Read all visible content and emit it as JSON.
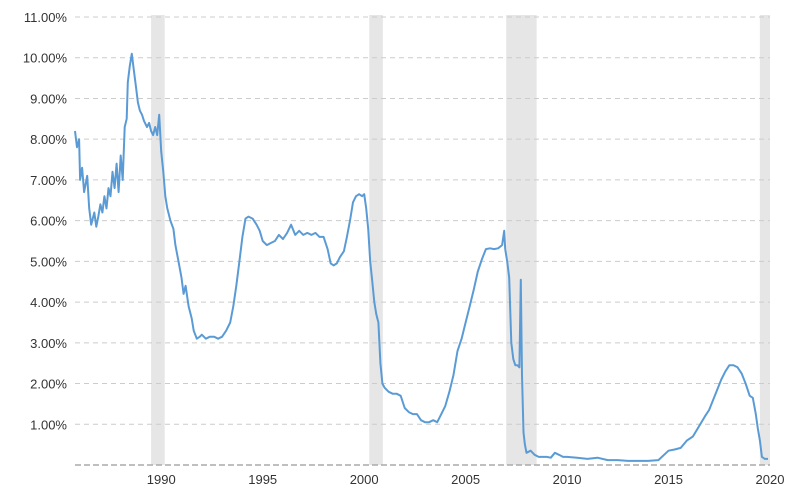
{
  "chart_data": {
    "type": "line",
    "title": "",
    "xlabel": "",
    "ylabel": "",
    "x_range": [
      1985.75,
      2020.0
    ],
    "y_range": [
      0,
      11
    ],
    "y_ticks": [
      {
        "value": 1,
        "label": "1.00%"
      },
      {
        "value": 2,
        "label": "2.00%"
      },
      {
        "value": 3,
        "label": "3.00%"
      },
      {
        "value": 4,
        "label": "4.00%"
      },
      {
        "value": 5,
        "label": "5.00%"
      },
      {
        "value": 6,
        "label": "6.00%"
      },
      {
        "value": 7,
        "label": "7.00%"
      },
      {
        "value": 8,
        "label": "8.00%"
      },
      {
        "value": 9,
        "label": "9.00%"
      },
      {
        "value": 10,
        "label": "10.00%"
      },
      {
        "value": 11,
        "label": "11.00%"
      }
    ],
    "x_ticks": [
      {
        "value": 1990,
        "label": "1990"
      },
      {
        "value": 1995,
        "label": "1995"
      },
      {
        "value": 2000,
        "label": "2000"
      },
      {
        "value": 2005,
        "label": "2005"
      },
      {
        "value": 2010,
        "label": "2010"
      },
      {
        "value": 2015,
        "label": "2015"
      },
      {
        "value": 2020,
        "label": "2020"
      }
    ],
    "grid": "horizontal dashed",
    "legend": "none",
    "recession_bands": [
      {
        "start": 1989.5,
        "end": 1990.17
      },
      {
        "start": 2000.25,
        "end": 2000.92
      },
      {
        "start": 2007.0,
        "end": 2008.5
      },
      {
        "start": 2019.5,
        "end": 2020.0
      }
    ],
    "colors": {
      "line": "#5b9bd5",
      "recession": "#e6e6e6",
      "grid": "#cccccc",
      "baseline": "#aaaaaa"
    },
    "series": [
      {
        "points": [
          [
            1985.75,
            8.2
          ],
          [
            1985.85,
            7.8
          ],
          [
            1985.95,
            8.0
          ],
          [
            1986.0,
            7.0
          ],
          [
            1986.1,
            7.3
          ],
          [
            1986.2,
            6.7
          ],
          [
            1986.35,
            7.1
          ],
          [
            1986.45,
            6.3
          ],
          [
            1986.55,
            5.9
          ],
          [
            1986.7,
            6.2
          ],
          [
            1986.8,
            5.85
          ],
          [
            1986.9,
            6.1
          ],
          [
            1987.0,
            6.4
          ],
          [
            1987.1,
            6.2
          ],
          [
            1987.2,
            6.6
          ],
          [
            1987.3,
            6.3
          ],
          [
            1987.4,
            6.8
          ],
          [
            1987.5,
            6.6
          ],
          [
            1987.6,
            7.2
          ],
          [
            1987.7,
            6.8
          ],
          [
            1987.8,
            7.4
          ],
          [
            1987.9,
            6.7
          ],
          [
            1988.0,
            7.6
          ],
          [
            1988.1,
            7.0
          ],
          [
            1988.2,
            8.3
          ],
          [
            1988.3,
            8.5
          ],
          [
            1988.35,
            9.4
          ],
          [
            1988.45,
            9.8
          ],
          [
            1988.55,
            10.1
          ],
          [
            1988.65,
            9.7
          ],
          [
            1988.75,
            9.3
          ],
          [
            1988.85,
            8.9
          ],
          [
            1988.95,
            8.7
          ],
          [
            1989.05,
            8.6
          ],
          [
            1989.15,
            8.45
          ],
          [
            1989.3,
            8.3
          ],
          [
            1989.4,
            8.4
          ],
          [
            1989.5,
            8.2
          ],
          [
            1989.6,
            8.1
          ],
          [
            1989.7,
            8.3
          ],
          [
            1989.8,
            8.1
          ],
          [
            1989.9,
            8.6
          ],
          [
            1990.0,
            7.7
          ],
          [
            1990.1,
            7.2
          ],
          [
            1990.2,
            6.6
          ],
          [
            1990.3,
            6.3
          ],
          [
            1990.45,
            6.0
          ],
          [
            1990.6,
            5.8
          ],
          [
            1990.7,
            5.4
          ],
          [
            1990.85,
            5.0
          ],
          [
            1991.0,
            4.6
          ],
          [
            1991.1,
            4.2
          ],
          [
            1991.2,
            4.4
          ],
          [
            1991.35,
            3.9
          ],
          [
            1991.5,
            3.6
          ],
          [
            1991.6,
            3.3
          ],
          [
            1991.75,
            3.1
          ],
          [
            1991.9,
            3.15
          ],
          [
            1992.0,
            3.2
          ],
          [
            1992.2,
            3.1
          ],
          [
            1992.4,
            3.15
          ],
          [
            1992.6,
            3.15
          ],
          [
            1992.8,
            3.1
          ],
          [
            1993.0,
            3.15
          ],
          [
            1993.2,
            3.3
          ],
          [
            1993.4,
            3.5
          ],
          [
            1993.55,
            3.9
          ],
          [
            1993.7,
            4.4
          ],
          [
            1993.85,
            5.0
          ],
          [
            1994.0,
            5.6
          ],
          [
            1994.15,
            6.05
          ],
          [
            1994.3,
            6.1
          ],
          [
            1994.5,
            6.05
          ],
          [
            1994.7,
            5.9
          ],
          [
            1994.85,
            5.75
          ],
          [
            1995.0,
            5.5
          ],
          [
            1995.2,
            5.4
          ],
          [
            1995.4,
            5.45
          ],
          [
            1995.6,
            5.5
          ],
          [
            1995.8,
            5.65
          ],
          [
            1996.0,
            5.55
          ],
          [
            1996.2,
            5.7
          ],
          [
            1996.4,
            5.9
          ],
          [
            1996.6,
            5.65
          ],
          [
            1996.8,
            5.75
          ],
          [
            1997.0,
            5.65
          ],
          [
            1997.2,
            5.7
          ],
          [
            1997.4,
            5.65
          ],
          [
            1997.6,
            5.7
          ],
          [
            1997.8,
            5.6
          ],
          [
            1998.0,
            5.6
          ],
          [
            1998.2,
            5.3
          ],
          [
            1998.35,
            4.95
          ],
          [
            1998.5,
            4.9
          ],
          [
            1998.65,
            4.95
          ],
          [
            1998.8,
            5.1
          ],
          [
            1999.0,
            5.25
          ],
          [
            1999.15,
            5.6
          ],
          [
            1999.3,
            6.0
          ],
          [
            1999.45,
            6.45
          ],
          [
            1999.6,
            6.6
          ],
          [
            1999.75,
            6.65
          ],
          [
            1999.9,
            6.6
          ],
          [
            2000.0,
            6.65
          ],
          [
            2000.1,
            6.3
          ],
          [
            2000.2,
            5.8
          ],
          [
            2000.3,
            5.0
          ],
          [
            2000.4,
            4.5
          ],
          [
            2000.5,
            4.0
          ],
          [
            2000.6,
            3.7
          ],
          [
            2000.7,
            3.5
          ],
          [
            2000.8,
            2.5
          ],
          [
            2000.9,
            2.0
          ],
          [
            2001.0,
            1.9
          ],
          [
            2001.2,
            1.8
          ],
          [
            2001.4,
            1.75
          ],
          [
            2001.6,
            1.75
          ],
          [
            2001.8,
            1.7
          ],
          [
            2002.0,
            1.4
          ],
          [
            2002.2,
            1.3
          ],
          [
            2002.4,
            1.25
          ],
          [
            2002.6,
            1.25
          ],
          [
            2002.8,
            1.1
          ],
          [
            2003.0,
            1.05
          ],
          [
            2003.2,
            1.05
          ],
          [
            2003.4,
            1.1
          ],
          [
            2003.6,
            1.05
          ],
          [
            2003.8,
            1.25
          ],
          [
            2004.0,
            1.45
          ],
          [
            2004.2,
            1.8
          ],
          [
            2004.4,
            2.2
          ],
          [
            2004.6,
            2.8
          ],
          [
            2004.8,
            3.1
          ],
          [
            2005.0,
            3.5
          ],
          [
            2005.2,
            3.9
          ],
          [
            2005.4,
            4.3
          ],
          [
            2005.6,
            4.75
          ],
          [
            2005.8,
            5.05
          ],
          [
            2006.0,
            5.3
          ],
          [
            2006.2,
            5.32
          ],
          [
            2006.4,
            5.3
          ],
          [
            2006.6,
            5.32
          ],
          [
            2006.8,
            5.4
          ],
          [
            2006.9,
            5.75
          ],
          [
            2006.95,
            5.3
          ],
          [
            2007.05,
            5.0
          ],
          [
            2007.15,
            4.6
          ],
          [
            2007.25,
            3.0
          ],
          [
            2007.35,
            2.6
          ],
          [
            2007.45,
            2.45
          ],
          [
            2007.55,
            2.45
          ],
          [
            2007.65,
            2.4
          ],
          [
            2007.72,
            4.55
          ],
          [
            2007.78,
            2.2
          ],
          [
            2007.85,
            0.8
          ],
          [
            2007.92,
            0.5
          ],
          [
            2008.0,
            0.3
          ],
          [
            2008.2,
            0.35
          ],
          [
            2008.4,
            0.25
          ],
          [
            2008.6,
            0.2
          ],
          [
            2008.8,
            0.2
          ],
          [
            2009.0,
            0.2
          ],
          [
            2009.2,
            0.18
          ],
          [
            2009.4,
            0.3
          ],
          [
            2009.6,
            0.25
          ],
          [
            2009.8,
            0.2
          ],
          [
            2010.0,
            0.2
          ],
          [
            2010.5,
            0.18
          ],
          [
            2011.0,
            0.15
          ],
          [
            2011.5,
            0.18
          ],
          [
            2012.0,
            0.12
          ],
          [
            2012.5,
            0.12
          ],
          [
            2013.0,
            0.1
          ],
          [
            2013.5,
            0.1
          ],
          [
            2014.0,
            0.1
          ],
          [
            2014.5,
            0.12
          ],
          [
            2015.0,
            0.35
          ],
          [
            2015.3,
            0.38
          ],
          [
            2015.6,
            0.42
          ],
          [
            2015.9,
            0.6
          ],
          [
            2016.2,
            0.7
          ],
          [
            2016.5,
            0.95
          ],
          [
            2016.8,
            1.2
          ],
          [
            2017.0,
            1.35
          ],
          [
            2017.2,
            1.6
          ],
          [
            2017.4,
            1.85
          ],
          [
            2017.6,
            2.1
          ],
          [
            2017.8,
            2.3
          ],
          [
            2018.0,
            2.45
          ],
          [
            2018.2,
            2.45
          ],
          [
            2018.4,
            2.4
          ],
          [
            2018.6,
            2.25
          ],
          [
            2018.8,
            2.0
          ],
          [
            2019.0,
            1.7
          ],
          [
            2019.15,
            1.65
          ],
          [
            2019.3,
            1.25
          ],
          [
            2019.4,
            0.9
          ],
          [
            2019.5,
            0.6
          ],
          [
            2019.6,
            0.2
          ],
          [
            2019.75,
            0.15
          ],
          [
            2019.9,
            0.15
          ]
        ]
      }
    ]
  }
}
